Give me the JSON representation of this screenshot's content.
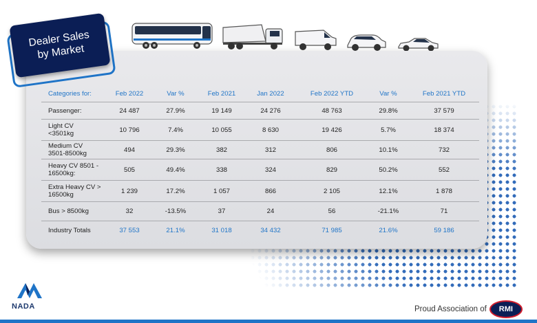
{
  "title": {
    "line1": "Dealer Sales",
    "line2": "by Market"
  },
  "vehicles": [
    "bus-icon",
    "truck-icon",
    "van-icon",
    "suv-icon",
    "car-icon"
  ],
  "table": {
    "headers": [
      "Categories for:",
      "Feb 2022",
      "Var %",
      "Feb 2021",
      "Jan 2022",
      "Feb 2022 YTD",
      "Var %",
      "Feb 2021 YTD"
    ],
    "rows": [
      {
        "cat": [
          "Passenger:"
        ],
        "v": [
          "24 487",
          "27.9%",
          "19 149",
          "24 276",
          "48 763",
          "29.8%",
          "37 579"
        ]
      },
      {
        "cat": [
          "Light CV",
          "<3501kg"
        ],
        "v": [
          "10 796",
          "7.4%",
          "10 055",
          "8 630",
          "19 426",
          "5.7%",
          "18 374"
        ]
      },
      {
        "cat": [
          "Medium CV",
          "3501-8500kg"
        ],
        "v": [
          "494",
          "29.3%",
          "382",
          "312",
          "806",
          "10.1%",
          "732"
        ]
      },
      {
        "cat": [
          "Heavy CV 8501 -",
          "16500kg:"
        ],
        "v": [
          "505",
          "49.4%",
          "338",
          "324",
          "829",
          "50.2%",
          "552"
        ]
      },
      {
        "cat": [
          "Extra Heavy CV >",
          "16500kg"
        ],
        "v": [
          "1 239",
          "17.2%",
          "1 057",
          "866",
          "2 105",
          "12.1%",
          "1 878"
        ]
      },
      {
        "cat": [
          "Bus > 8500kg"
        ],
        "v": [
          "32",
          "-13.5%",
          "37",
          "24",
          "56",
          "-21.1%",
          "71"
        ]
      },
      {
        "cat": [
          "Industry Totals"
        ],
        "v": [
          "37 553",
          "21.1%",
          "31 018",
          "34 432",
          "71 985",
          "21.6%",
          "59 186"
        ]
      }
    ]
  },
  "footer": {
    "logo_text": "NADA",
    "proud": "Proud Association of",
    "rmi": "RMI"
  },
  "colors": {
    "accent": "#1f74c7",
    "navy": "#0b1e55",
    "red": "#d11d2c"
  }
}
